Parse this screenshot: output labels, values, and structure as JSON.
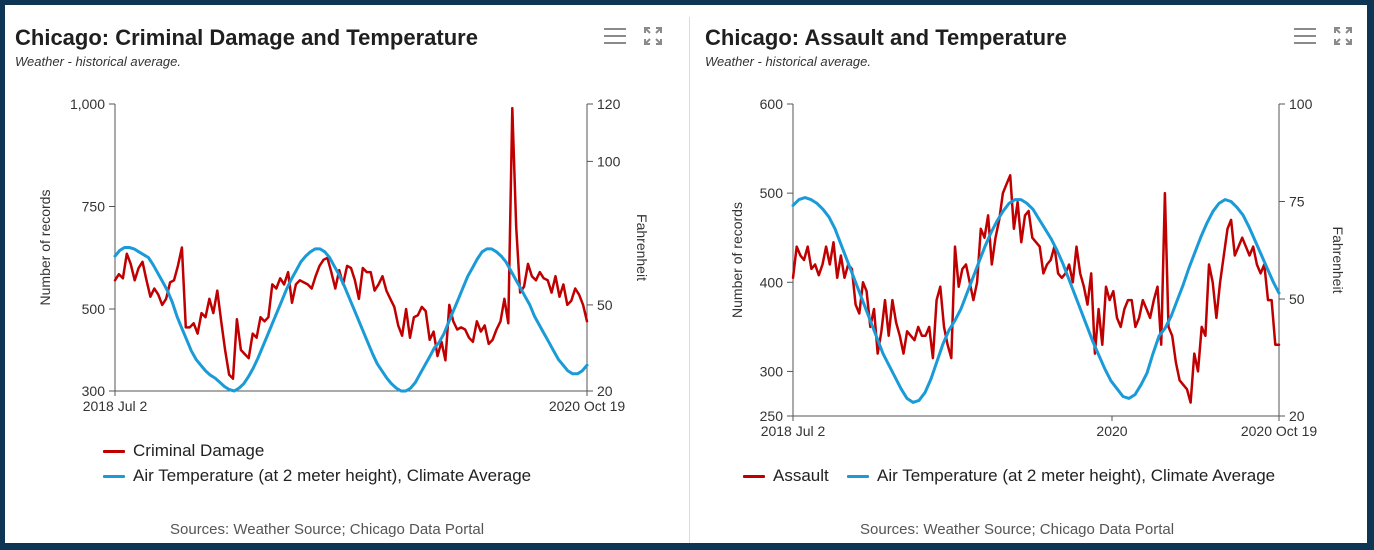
{
  "sources_label": "Sources: Weather Source; Chicago Data Portal",
  "colors": {
    "crime": "#c00000",
    "temperature": "#1a9bd7"
  },
  "chart_data": [
    {
      "type": "line",
      "title": "Chicago: Criminal Damage and Temperature",
      "subtitle": "Weather - historical average.",
      "ylabel": "Number of records",
      "y2label": "Fahrenheit",
      "ylim": [
        300,
        1000
      ],
      "y2lim": [
        20,
        120
      ],
      "yticks": [
        "1,000",
        "750",
        "500",
        "300"
      ],
      "y2ticks": [
        "120",
        "100",
        "50",
        "20"
      ],
      "xticks": [
        "2018 Jul 2",
        "2020 Oct 19"
      ],
      "legend_position": "bottom",
      "series": [
        {
          "name": "Criminal Damage",
          "color": "#c00000",
          "axis": "left",
          "values": [
            570,
            585,
            575,
            635,
            610,
            570,
            600,
            615,
            570,
            530,
            550,
            535,
            510,
            525,
            565,
            570,
            605,
            650,
            455,
            455,
            465,
            440,
            490,
            480,
            525,
            490,
            545,
            470,
            400,
            340,
            330,
            475,
            400,
            390,
            380,
            440,
            430,
            480,
            470,
            480,
            560,
            550,
            575,
            560,
            590,
            515,
            560,
            570,
            565,
            560,
            550,
            580,
            605,
            620,
            625,
            590,
            550,
            595,
            560,
            605,
            600,
            570,
            525,
            600,
            590,
            590,
            545,
            560,
            580,
            545,
            525,
            505,
            460,
            435,
            500,
            430,
            480,
            485,
            505,
            495,
            425,
            445,
            385,
            420,
            375,
            510,
            470,
            450,
            455,
            450,
            430,
            420,
            470,
            445,
            460,
            415,
            425,
            450,
            470,
            525,
            465,
            990,
            700,
            540,
            555,
            610,
            580,
            570,
            590,
            575,
            570,
            540,
            580,
            530,
            560,
            510,
            520,
            550,
            535,
            510,
            470
          ]
        },
        {
          "name": "Air Temperature (at 2 meter height), Climate Average",
          "color": "#1a9bd7",
          "axis": "right",
          "values": [
            67,
            69,
            70,
            70,
            69.5,
            68.5,
            67.5,
            66.5,
            64,
            61,
            58,
            55,
            51,
            46,
            42,
            38,
            34,
            31,
            29,
            27,
            25.5,
            24.5,
            23,
            21.5,
            20.5,
            20,
            21,
            22.5,
            25,
            28,
            31.5,
            35.5,
            39.5,
            43.5,
            47.5,
            51.5,
            55.5,
            59,
            62,
            65,
            67,
            68.5,
            69.5,
            69.5,
            68.5,
            66.5,
            63.5,
            60.5,
            57,
            53,
            49,
            45,
            41,
            37,
            33,
            29.5,
            27,
            24.5,
            22.5,
            21,
            20,
            20,
            21,
            23,
            26,
            29,
            32,
            35,
            37,
            40,
            44,
            48,
            52,
            56,
            60,
            63,
            66,
            68.5,
            69.5,
            69.5,
            68.5,
            67,
            65,
            62,
            59,
            56,
            53,
            50,
            46,
            43,
            40,
            37,
            34,
            31,
            29,
            27,
            26,
            26,
            27,
            29
          ]
        }
      ]
    },
    {
      "type": "line",
      "title": "Chicago: Assault and Temperature",
      "subtitle": "Weather - historical average.",
      "ylabel": "Number of records",
      "y2label": "Fahrenheit",
      "ylim": [
        250,
        600
      ],
      "y2lim": [
        20,
        100
      ],
      "yticks": [
        "600",
        "500",
        "400",
        "300",
        "250"
      ],
      "y2ticks": [
        "100",
        "75",
        "50",
        "20"
      ],
      "xticks": [
        "2018 Jul 2",
        "2020",
        "2020 Oct 19"
      ],
      "legend_position": "bottom",
      "series": [
        {
          "name": "Assault",
          "color": "#c00000",
          "axis": "left",
          "values": [
            405,
            440,
            430,
            425,
            440,
            415,
            420,
            408,
            420,
            440,
            420,
            445,
            405,
            430,
            405,
            420,
            415,
            375,
            365,
            400,
            390,
            350,
            370,
            320,
            345,
            380,
            340,
            380,
            355,
            340,
            320,
            345,
            340,
            335,
            350,
            340,
            340,
            350,
            315,
            380,
            395,
            350,
            330,
            315,
            440,
            395,
            415,
            420,
            400,
            380,
            400,
            460,
            450,
            475,
            420,
            450,
            470,
            500,
            510,
            520,
            460,
            490,
            445,
            475,
            480,
            450,
            445,
            440,
            410,
            420,
            425,
            440,
            410,
            405,
            410,
            420,
            400,
            440,
            410,
            395,
            375,
            410,
            320,
            370,
            330,
            395,
            380,
            390,
            360,
            350,
            370,
            380,
            380,
            350,
            360,
            380,
            370,
            360,
            380,
            395,
            330,
            500,
            350,
            340,
            310,
            290,
            285,
            280,
            265,
            320,
            300,
            350,
            340,
            420,
            400,
            360,
            400,
            430,
            460,
            470,
            430,
            440,
            450,
            440,
            430,
            440,
            420,
            410,
            420,
            380,
            380,
            330,
            330
          ]
        },
        {
          "name": "Air Temperature (at 2 meter height), Climate Average",
          "color": "#1a9bd7",
          "axis": "right",
          "values": [
            74,
            75.5,
            76,
            75.5,
            74.5,
            73,
            71,
            68,
            64,
            60,
            56,
            52,
            48,
            44,
            40,
            36,
            33,
            30,
            27,
            24.5,
            23.5,
            24,
            26,
            29.5,
            34,
            38.5,
            42,
            44.5,
            47.5,
            51.5,
            55.5,
            59.5,
            63.5,
            67,
            70,
            72.5,
            74.5,
            75.5,
            75.5,
            74.5,
            73,
            70.5,
            68,
            65.5,
            62.5,
            59,
            55,
            51,
            47,
            43,
            39,
            35.5,
            32,
            29,
            27,
            25,
            24.5,
            25.5,
            28,
            31,
            36,
            40.5,
            42.5,
            45.5,
            49.5,
            53.5,
            58,
            62,
            66,
            69.5,
            72.5,
            74.5,
            75.5,
            75,
            73.5,
            71.5,
            68.5,
            65,
            61.5,
            58,
            54.5,
            51.5
          ]
        }
      ]
    }
  ]
}
